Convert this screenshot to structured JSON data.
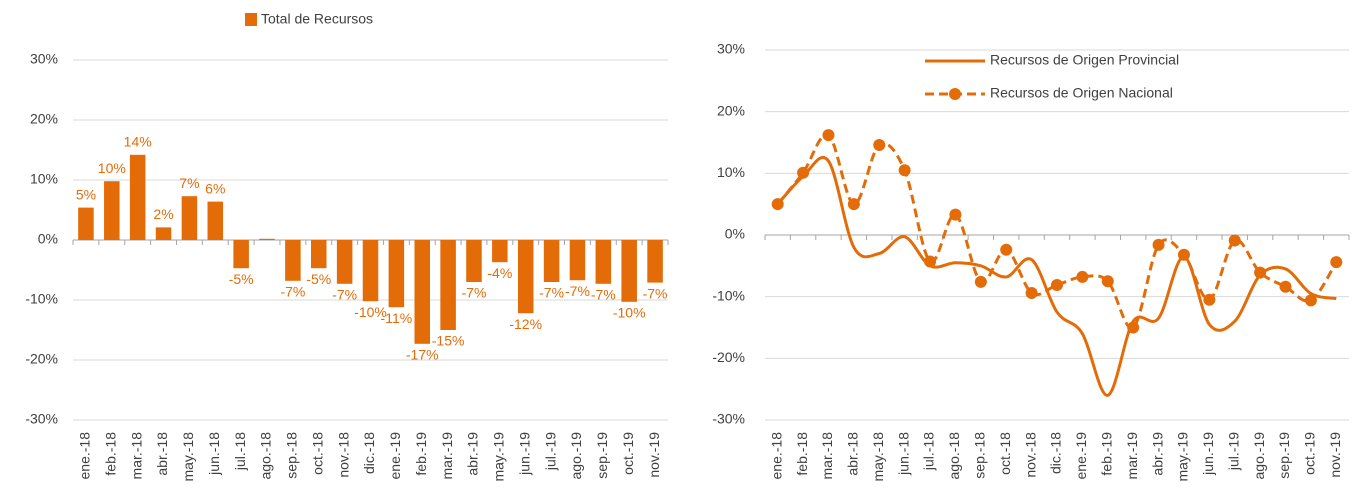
{
  "chart_data": [
    {
      "type": "bar",
      "categories": [
        "ene.-18",
        "feb.-18",
        "mar.-18",
        "abr.-18",
        "may.-18",
        "jun.-18",
        "jul.-18",
        "ago.-18",
        "sep.-18",
        "oct.-18",
        "nov.-18",
        "dic.-18",
        "ene.-19",
        "feb.-19",
        "mar.-19",
        "abr.-19",
        "may.-19",
        "jun.-19",
        "jul.-19",
        "ago.-19",
        "sep.-19",
        "oct.-19",
        "nov.-19"
      ],
      "series": [
        {
          "name": "Total de Recursos",
          "color": "#e36c09",
          "values": [
            5.4,
            9.8,
            14.2,
            2.1,
            7.3,
            6.4,
            -4.7,
            0.2,
            -6.8,
            -4.7,
            -7.3,
            -10.2,
            -11.2,
            -17.3,
            -15.0,
            -7.0,
            -3.7,
            -12.2,
            -7.0,
            -6.7,
            -7.3,
            -10.3,
            -7.1
          ],
          "value_labels": [
            "5%",
            "10%",
            "14%",
            "2%",
            "7%",
            "6%",
            "-5%",
            null,
            "-7%",
            "-5%",
            "-7%",
            "-10%",
            "-11%",
            "-17%",
            "-15%",
            "-7%",
            "-4%",
            "-12%",
            "-7%",
            "-7%",
            "-7%",
            "-10%",
            "-7%"
          ]
        }
      ],
      "ylim": [
        -30,
        30
      ],
      "yticks": [
        {
          "value": -30,
          "label": "-30%"
        },
        {
          "value": -20,
          "label": "-20%"
        },
        {
          "value": -10,
          "label": "-10%"
        },
        {
          "value": 0,
          "label": "0%"
        },
        {
          "value": 10,
          "label": "10%"
        },
        {
          "value": 20,
          "label": "20%"
        },
        {
          "value": 30,
          "label": "30%"
        }
      ],
      "grid": true,
      "legend": "top"
    },
    {
      "type": "line",
      "categories": [
        "ene.-18",
        "feb.-18",
        "mar.-18",
        "abr.-18",
        "may.-18",
        "jun.-18",
        "jul.-18",
        "ago.-18",
        "sep.-18",
        "oct.-18",
        "nov.-18",
        "dic.-18",
        "ene.-19",
        "feb.-19",
        "mar.-19",
        "abr.-19",
        "may.-19",
        "jun.-19",
        "jul.-19",
        "ago.-19",
        "sep.-19",
        "oct.-19",
        "nov.-19"
      ],
      "series": [
        {
          "name": "Recursos de Origen Provincial",
          "color": "#e36c09",
          "line_style": "solid",
          "marker": "none",
          "values": [
            5.0,
            9.5,
            12.0,
            -2.0,
            -3.0,
            -0.3,
            -5.0,
            -4.5,
            -5.0,
            -6.8,
            -4.0,
            -12.5,
            -16.0,
            -26.0,
            -14.0,
            -13.5,
            -3.5,
            -14.5,
            -14.0,
            -6.5,
            -5.5,
            -9.5,
            -10.3
          ]
        },
        {
          "name": "Recursos de Origen Nacional",
          "color": "#e36c09",
          "line_style": "dashed",
          "marker": "circle",
          "values": [
            5.0,
            10.1,
            16.2,
            5.0,
            14.6,
            10.5,
            -4.3,
            3.3,
            -7.6,
            -2.4,
            -9.4,
            -8.1,
            -6.8,
            -7.5,
            -15.0,
            -1.6,
            -3.2,
            -10.5,
            -0.9,
            -6.1,
            -8.4,
            -10.6,
            -4.4
          ]
        }
      ],
      "ylim": [
        -30,
        30
      ],
      "yticks": [
        {
          "value": -30,
          "label": "-30%"
        },
        {
          "value": -20,
          "label": "-20%"
        },
        {
          "value": -10,
          "label": "-10%"
        },
        {
          "value": 0,
          "label": "0%"
        },
        {
          "value": 10,
          "label": "10%"
        },
        {
          "value": 20,
          "label": "20%"
        },
        {
          "value": 30,
          "label": "30%"
        }
      ],
      "grid": true,
      "legend": "top-right"
    }
  ]
}
